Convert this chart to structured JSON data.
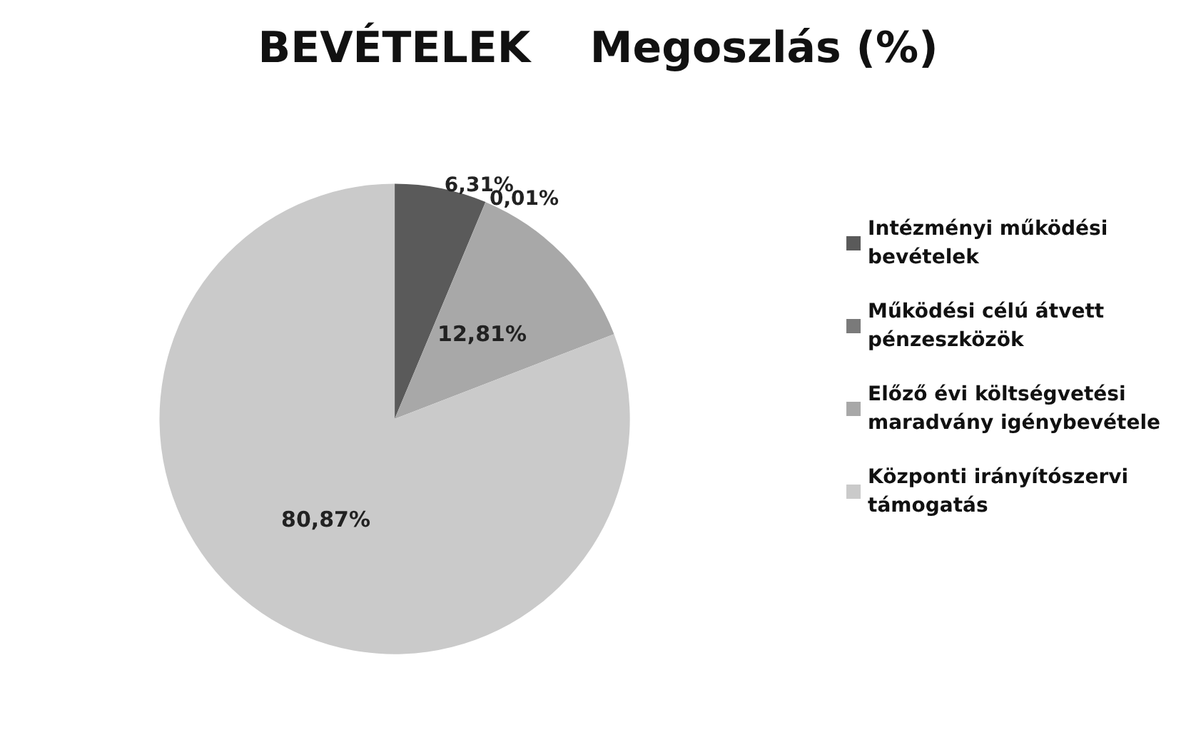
{
  "chart_data": {
    "type": "pie",
    "title": "BEVÉTELEK    Megoszlás (%)",
    "categories": [
      "Intézményi működési bevételek",
      "Működési célú átvett pénzeszközök",
      "Előző évi költségvetési maradvány igénybevétele",
      "Központi irányítószervi támogatás"
    ],
    "values": [
      6.31,
      0.01,
      12.81,
      80.87
    ],
    "colors": [
      "#5a5a5a",
      "#7a7a7a",
      "#a8a8a8",
      "#cacaca"
    ],
    "value_labels": [
      "6,31%",
      "0,01%",
      "12,81%",
      "80,87%"
    ],
    "legend": "right"
  }
}
